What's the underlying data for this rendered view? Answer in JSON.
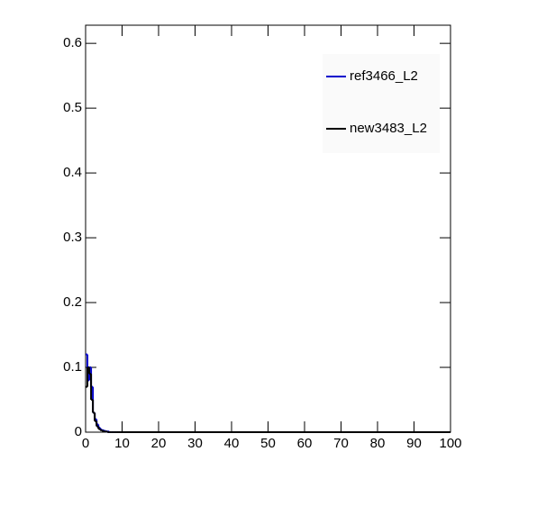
{
  "chart_data": {
    "type": "histogram",
    "bins": [
      0,
      0.5,
      1,
      1.5,
      2,
      2.5,
      3,
      3.5,
      4,
      4.5,
      5,
      5.5,
      6,
      6.5,
      7,
      7.5,
      8,
      8.5,
      9,
      9.5,
      10,
      100
    ],
    "series": [
      {
        "name": "ref3466_L2",
        "color": "#0000cc",
        "values": [
          0.12,
          0.08,
          0.1,
          0.07,
          0.03,
          0.02,
          0.012,
          0.007,
          0.004,
          0.003,
          0.002,
          0.001,
          0.001,
          0,
          0,
          0,
          0,
          0,
          0,
          0,
          0
        ]
      },
      {
        "name": "new3483_L2",
        "color": "#000000",
        "values": [
          0.07,
          0.1,
          0.09,
          0.05,
          0.03,
          0.017,
          0.009,
          0.005,
          0.003,
          0.002,
          0.001,
          0.001,
          0,
          0,
          0,
          0,
          0,
          0,
          0,
          0,
          0
        ]
      }
    ],
    "xlim": [
      0,
      100
    ],
    "xticks": [
      0,
      10,
      20,
      30,
      40,
      50,
      60,
      70,
      80,
      90,
      100
    ],
    "ylim": [
      0,
      0.628
    ],
    "yticks": [
      0,
      0.1,
      0.2,
      0.3,
      0.4,
      0.5,
      0.6
    ]
  }
}
